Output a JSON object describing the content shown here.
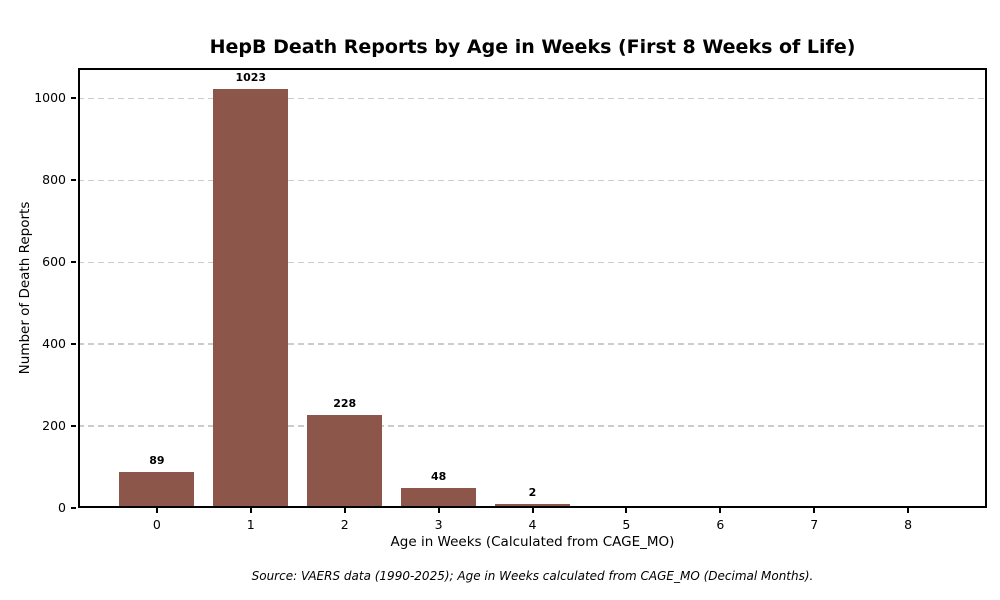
{
  "chart_data": {
    "type": "bar",
    "title": "HepB Death Reports by Age in Weeks (First 8 Weeks of Life)",
    "xlabel": "Age in Weeks (Calculated from CAGE_MO)",
    "ylabel": "Number of Death Reports",
    "source_note": "Source: VAERS data (1990-2025); Age in Weeks calculated from CAGE_MO (Decimal Months).",
    "categories": [
      "0",
      "1",
      "2",
      "3",
      "4",
      "5",
      "6",
      "7",
      "8"
    ],
    "values": [
      89,
      1023,
      228,
      48,
      2,
      0,
      0,
      0,
      0
    ],
    "bar_labels": [
      "89",
      "1023",
      "228",
      "48",
      "2",
      "",
      "",
      "",
      ""
    ],
    "yticks": [
      0,
      200,
      400,
      600,
      800,
      1000
    ],
    "ylim": [
      0,
      1074
    ],
    "xlim": [
      -0.84,
      8.84
    ],
    "bar_width": 0.8,
    "grid": true,
    "grid_style": "dashed",
    "legend": null,
    "colors": {
      "bar": "#8c564b",
      "grid": "#cccccc",
      "spine": "#000000",
      "text": "#000000"
    }
  }
}
